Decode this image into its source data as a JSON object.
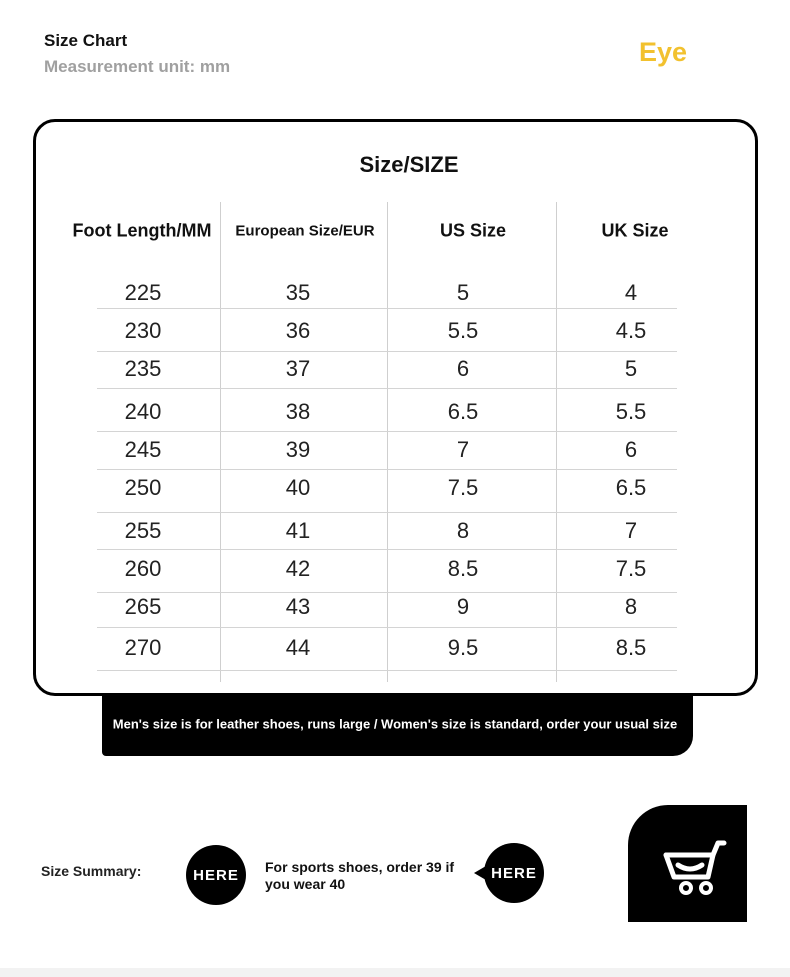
{
  "header": {
    "title": "Size Chart",
    "unit": "Measurement unit: mm",
    "brand": "Eye"
  },
  "table": {
    "title": "Size/SIZE",
    "columns": [
      "Foot Length/MM",
      "European Size/EUR",
      "US Size",
      "UK Size"
    ],
    "rows": [
      [
        225,
        35,
        5,
        4
      ],
      [
        230,
        36,
        5.5,
        4.5
      ],
      [
        235,
        37,
        6,
        5
      ],
      [
        240,
        38,
        6.5,
        5.5
      ],
      [
        245,
        39,
        7,
        6
      ],
      [
        250,
        40,
        7.5,
        6.5
      ],
      [
        255,
        41,
        8,
        7
      ],
      [
        260,
        42,
        8.5,
        7.5
      ],
      [
        265,
        43,
        9,
        8
      ],
      [
        270,
        44,
        9.5,
        8.5
      ]
    ]
  },
  "banner": "Men's size is for leather shoes, runs large / Women's size is standard, order your usual size",
  "summary": {
    "label": "Size Summary:",
    "badge_left": "HERE",
    "note": "For sports shoes, order 39 if you wear 40",
    "badge_right": "HERE"
  }
}
